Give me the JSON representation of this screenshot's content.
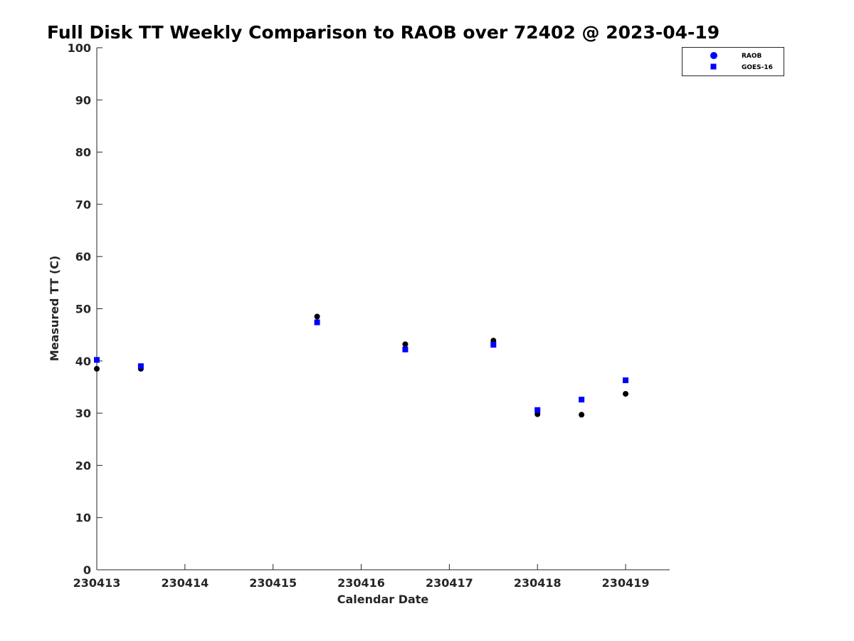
{
  "chart_data": {
    "type": "scatter",
    "title": "Full Disk TT Weekly Comparison to RAOB over 72402 @ 2023-04-19",
    "xlabel": "Calendar Date",
    "ylabel": "Measured TT (C)",
    "xlim": [
      230413,
      230419.5
    ],
    "ylim": [
      0,
      100
    ],
    "xticks": [
      230413,
      230414,
      230415,
      230416,
      230417,
      230418,
      230419
    ],
    "xtick_labels": [
      "230413",
      "230414",
      "230415",
      "230416",
      "230417",
      "230418",
      "230419"
    ],
    "yticks": [
      0,
      10,
      20,
      30,
      40,
      50,
      60,
      70,
      80,
      90,
      100
    ],
    "ytick_labels": [
      "0",
      "10",
      "20",
      "30",
      "40",
      "50",
      "60",
      "70",
      "80",
      "90",
      "100"
    ],
    "grid": false,
    "legend_position": "top-right",
    "series": [
      {
        "name": "RAOB",
        "marker": "circle",
        "color": "#000000",
        "legend_color": "#0000ff",
        "points": [
          {
            "x": 230413.0,
            "y": 38.5
          },
          {
            "x": 230413.5,
            "y": 38.5
          },
          {
            "x": 230415.5,
            "y": 48.5
          },
          {
            "x": 230416.5,
            "y": 43.2
          },
          {
            "x": 230417.5,
            "y": 43.9
          },
          {
            "x": 230418.0,
            "y": 29.8
          },
          {
            "x": 230418.5,
            "y": 29.7
          },
          {
            "x": 230419.0,
            "y": 33.7
          }
        ]
      },
      {
        "name": "GOES-16",
        "marker": "square",
        "color": "#0000ff",
        "legend_color": "#0000ff",
        "points": [
          {
            "x": 230413.0,
            "y": 40.2
          },
          {
            "x": 230413.5,
            "y": 39.0
          },
          {
            "x": 230415.5,
            "y": 47.4
          },
          {
            "x": 230416.5,
            "y": 42.2
          },
          {
            "x": 230417.5,
            "y": 43.1
          },
          {
            "x": 230418.0,
            "y": 30.6
          },
          {
            "x": 230418.5,
            "y": 32.6
          },
          {
            "x": 230419.0,
            "y": 36.3
          }
        ]
      }
    ]
  }
}
